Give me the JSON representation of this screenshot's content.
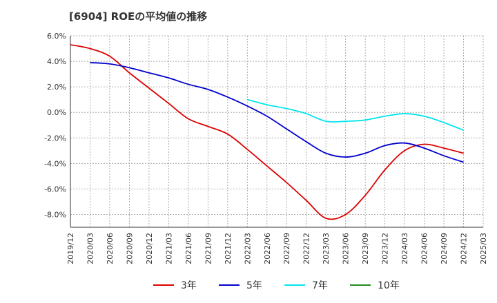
{
  "chart_data": {
    "type": "line",
    "title": "[6904]  ROEの平均値の推移",
    "xlabel": "",
    "ylabel": "",
    "ylim": [
      -9,
      6
    ],
    "yticks": [
      6,
      4,
      2,
      0,
      -2,
      -4,
      -6,
      -8
    ],
    "ytick_labels": [
      "6.0%",
      "4.0%",
      "2.0%",
      "0.0%",
      "-2.0%",
      "-4.0%",
      "-6.0%",
      "-8.0%"
    ],
    "x_categories": [
      "2019/12",
      "2020/03",
      "2020/06",
      "2020/09",
      "2020/12",
      "2021/03",
      "2021/06",
      "2021/09",
      "2021/12",
      "2022/03",
      "2022/06",
      "2022/09",
      "2022/12",
      "2023/03",
      "2023/06",
      "2023/09",
      "2023/12",
      "2024/03",
      "2024/06",
      "2024/09",
      "2024/12",
      "2025/03"
    ],
    "grid": true,
    "legend_position": "bottom",
    "series": [
      {
        "name": "3年",
        "color": "#dd0000",
        "x": [
          "2019/12",
          "2020/03",
          "2020/06",
          "2020/09",
          "2020/12",
          "2021/03",
          "2021/06",
          "2021/09",
          "2021/12",
          "2022/03",
          "2022/06",
          "2022/09",
          "2022/12",
          "2023/03",
          "2023/06",
          "2023/09",
          "2023/12",
          "2024/03",
          "2024/06",
          "2024/09",
          "2024/12"
        ],
        "values": [
          5.3,
          5.0,
          4.4,
          3.1,
          1.9,
          0.7,
          -0.5,
          -1.1,
          -1.7,
          -2.9,
          -4.2,
          -5.5,
          -6.9,
          -8.3,
          -8.0,
          -6.5,
          -4.5,
          -3.0,
          -2.5,
          -2.8,
          -3.2
        ]
      },
      {
        "name": "5年",
        "color": "#0000cc",
        "x": [
          "2020/03",
          "2020/06",
          "2020/09",
          "2020/12",
          "2021/03",
          "2021/06",
          "2021/09",
          "2021/12",
          "2022/03",
          "2022/06",
          "2022/09",
          "2022/12",
          "2023/03",
          "2023/06",
          "2023/09",
          "2023/12",
          "2024/03",
          "2024/06",
          "2024/09",
          "2024/12"
        ],
        "values": [
          3.9,
          3.8,
          3.5,
          3.1,
          2.7,
          2.2,
          1.8,
          1.2,
          0.5,
          -0.3,
          -1.3,
          -2.3,
          -3.2,
          -3.5,
          -3.2,
          -2.6,
          -2.4,
          -2.8,
          -3.4,
          -3.9
        ]
      },
      {
        "name": "7年",
        "color": "#00e5ee",
        "x": [
          "2022/03",
          "2022/06",
          "2022/09",
          "2022/12",
          "2023/03",
          "2023/06",
          "2023/09",
          "2023/12",
          "2024/03",
          "2024/06",
          "2024/09",
          "2024/12"
        ],
        "values": [
          1.0,
          0.6,
          0.3,
          -0.1,
          -0.7,
          -0.7,
          -0.6,
          -0.3,
          -0.1,
          -0.3,
          -0.8,
          -1.4
        ]
      },
      {
        "name": "10年",
        "color": "#228b22",
        "x": [],
        "values": []
      }
    ]
  }
}
